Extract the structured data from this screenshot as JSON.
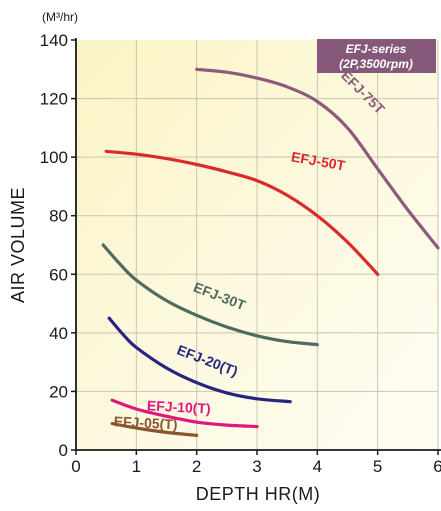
{
  "chart_data": {
    "type": "line",
    "unit_label": "(M³/hr)",
    "xlabel": "DEPTH HR(M)",
    "ylabel": "AIR VOLUME",
    "xlim": [
      0,
      6
    ],
    "ylim": [
      0,
      140
    ],
    "xticks": [
      0,
      1,
      2,
      3,
      4,
      5,
      6
    ],
    "yticks": [
      0,
      20,
      40,
      60,
      80,
      100,
      120,
      140
    ],
    "grid": true,
    "badge": {
      "line1": "EFJ-series",
      "line2": "(2P,3500rpm)"
    },
    "series": [
      {
        "name": "EFJ-75T",
        "color": "#8c5a7a",
        "x": [
          2,
          2.5,
          3,
          3.5,
          4,
          4.5,
          5,
          5.5,
          6
        ],
        "y": [
          130,
          129,
          127,
          124,
          119,
          110,
          96,
          82,
          69
        ]
      },
      {
        "name": "EFJ-50T",
        "color": "#d92b2b",
        "x": [
          0.5,
          1,
          1.5,
          2,
          2.5,
          3,
          3.5,
          4,
          4.5,
          5
        ],
        "y": [
          102,
          101,
          99.5,
          97.5,
          95,
          92,
          87,
          80,
          71,
          60
        ]
      },
      {
        "name": "EFJ-30T",
        "color": "#4d6b60",
        "x": [
          0.45,
          0.75,
          1,
          1.5,
          2,
          2.5,
          3,
          3.5,
          4
        ],
        "y": [
          70,
          63,
          58,
          51,
          46,
          42,
          39,
          37,
          36
        ]
      },
      {
        "name": "EFJ-20(T)",
        "color": "#262680",
        "x": [
          0.55,
          0.8,
          1,
          1.5,
          2,
          2.5,
          3,
          3.55
        ],
        "y": [
          45,
          39,
          35,
          28,
          23,
          19.5,
          17.5,
          16.5
        ]
      },
      {
        "name": "EFJ-10(T)",
        "color": "#e0177f",
        "x": [
          0.6,
          1,
          1.5,
          2,
          2.5,
          3
        ],
        "y": [
          17,
          14,
          11.5,
          9.5,
          8.5,
          8
        ]
      },
      {
        "name": "EFJ-05(T)",
        "color": "#8a5530",
        "x": [
          0.6,
          1,
          1.5,
          2
        ],
        "y": [
          9,
          7.5,
          6,
          5
        ]
      }
    ]
  }
}
